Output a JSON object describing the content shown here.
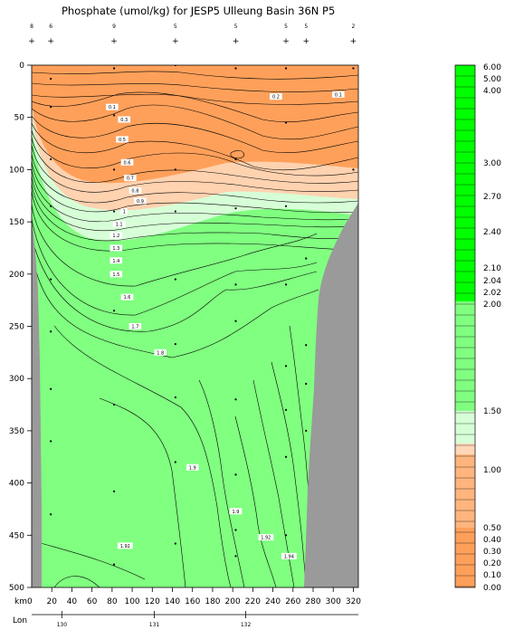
{
  "chart_data": {
    "type": "contour",
    "title": "Phosphate (umol/kg) for JESP5 Ulleung Basin 36N P5",
    "x_unit_label": "km0",
    "lon_label": "Lon",
    "xlim": [
      0,
      325
    ],
    "ylim": [
      0,
      500
    ],
    "y_reversed": true,
    "x_ticks": [
      20,
      40,
      60,
      80,
      100,
      120,
      140,
      160,
      180,
      200,
      220,
      240,
      260,
      280,
      300,
      320
    ],
    "y_ticks": [
      0,
      50,
      100,
      150,
      200,
      250,
      300,
      350,
      400,
      450,
      500
    ],
    "lon_ticks": [
      {
        "km": 30,
        "label": "130"
      },
      {
        "km": 122,
        "label": "131"
      },
      {
        "km": 213,
        "label": "132"
      }
    ],
    "station_numbers": [
      {
        "km": 0,
        "label": "8"
      },
      {
        "km": 19,
        "label": "6"
      },
      {
        "km": 82,
        "label": "9"
      },
      {
        "km": 143,
        "label": "5"
      },
      {
        "km": 203,
        "label": "5"
      },
      {
        "km": 253,
        "label": "5"
      },
      {
        "km": 273,
        "label": "5"
      },
      {
        "km": 320,
        "label": "2"
      }
    ],
    "stations_km": [
      0,
      19,
      82,
      143,
      203,
      253,
      273,
      320
    ],
    "samples": [
      {
        "km": 19,
        "depths": [
          13,
          40,
          90,
          135,
          205,
          255,
          310,
          360,
          430
        ]
      },
      {
        "km": 82,
        "depths": [
          3,
          48,
          100,
          140,
          200,
          235,
          325,
          408,
          478
        ]
      },
      {
        "km": 143,
        "depths": [
          0,
          100,
          140,
          205,
          267,
          318,
          380,
          458
        ]
      },
      {
        "km": 203,
        "depths": [
          3,
          90,
          137,
          210,
          245,
          320,
          392,
          445,
          470
        ]
      },
      {
        "km": 253,
        "depths": [
          3,
          55,
          135,
          210,
          288,
          330,
          375,
          450
        ]
      },
      {
        "km": 273,
        "depths": [
          185,
          268,
          305,
          350
        ]
      },
      {
        "km": 320,
        "depths": [
          3,
          100
        ]
      }
    ],
    "contour_labels": [
      {
        "text": "0.1",
        "km": 80,
        "depth": 40
      },
      {
        "text": "0.3",
        "km": 92,
        "depth": 52
      },
      {
        "text": "0.2",
        "km": 243,
        "depth": 30
      },
      {
        "text": "0.1",
        "km": 305,
        "depth": 28
      },
      {
        "text": "0.5",
        "km": 90,
        "depth": 71
      },
      {
        "text": "0.6",
        "km": 95,
        "depth": 93
      },
      {
        "text": "0.7",
        "km": 98,
        "depth": 108
      },
      {
        "text": "0.8",
        "km": 103,
        "depth": 120
      },
      {
        "text": "0.9",
        "km": 108,
        "depth": 130
      },
      {
        "text": "1",
        "km": 92,
        "depth": 140
      },
      {
        "text": "1.1",
        "km": 87,
        "depth": 152
      },
      {
        "text": "1.2",
        "km": 84,
        "depth": 163
      },
      {
        "text": "1.3",
        "km": 84,
        "depth": 175
      },
      {
        "text": "1.4",
        "km": 84,
        "depth": 187
      },
      {
        "text": "1.5",
        "km": 84,
        "depth": 200
      },
      {
        "text": "1.6",
        "km": 95,
        "depth": 222
      },
      {
        "text": "1.7",
        "km": 103,
        "depth": 250
      },
      {
        "text": "1.8",
        "km": 128,
        "depth": 275
      },
      {
        "text": "1.9",
        "km": 160,
        "depth": 385
      },
      {
        "text": "1.9",
        "km": 203,
        "depth": 427
      },
      {
        "text": "1.92",
        "km": 93,
        "depth": 460
      },
      {
        "text": "1.92",
        "km": 233,
        "depth": 452
      },
      {
        "text": "1.94",
        "km": 256,
        "depth": 470
      }
    ],
    "colorbar": {
      "tick_labels": [
        "6.00",
        "5.00",
        "4.00",
        "3.00",
        "2.70",
        "2.40",
        "2.10",
        "2.04",
        "2.02",
        "2.00",
        "1.50",
        "1.00",
        "0.50",
        "0.40",
        "0.30",
        "0.20",
        "0.10",
        "0.00"
      ],
      "colors": {
        "green_high": "#00ff00",
        "green_low": "#80ff80",
        "pale_green": "#d7ffd7",
        "peach": "#ffd7b8",
        "orange_light": "#ffb57d",
        "orange": "#ffa05a"
      }
    },
    "colors": {
      "land": "#9a9a9a",
      "field_green": "#80ff80",
      "field_pale": "#d7ffd7",
      "field_peach": "#ffd2b0",
      "field_orange": "#ffa05a"
    }
  }
}
